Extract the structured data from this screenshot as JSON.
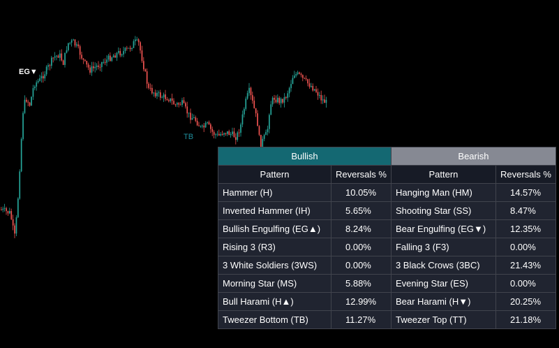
{
  "markers": {
    "engulfing": "EG▼",
    "tweezer_bottom": "TB"
  },
  "colors": {
    "up_candle": "#26a69a",
    "down_candle": "#ef5350",
    "bullish_header": "#146872",
    "bearish_header": "#868993",
    "table_bg": "#202430",
    "background": "#000000"
  },
  "table": {
    "bullish_title": "Bullish",
    "bearish_title": "Bearish",
    "col_pattern": "Pattern",
    "col_reversals": "Reversals %",
    "rows": [
      {
        "bull_name": "Hammer (H)",
        "bull_value": "10.05%",
        "bear_name": "Hanging Man (HM)",
        "bear_value": "14.57%"
      },
      {
        "bull_name": "Inverted Hammer (IH)",
        "bull_value": "5.65%",
        "bear_name": "Shooting Star (SS)",
        "bear_value": "8.47%"
      },
      {
        "bull_name": "Bullish Engulfing (EG▲)",
        "bull_value": "8.24%",
        "bear_name": "Bear Engulfing (EG▼)",
        "bear_value": "12.35%"
      },
      {
        "bull_name": "Rising 3 (R3)",
        "bull_value": "0.00%",
        "bear_name": "Falling 3 (F3)",
        "bear_value": "0.00%"
      },
      {
        "bull_name": "3 White Soldiers (3WS)",
        "bull_value": "0.00%",
        "bear_name": "3 Black Crows (3BC)",
        "bear_value": "21.43%"
      },
      {
        "bull_name": "Morning Star (MS)",
        "bull_value": "5.88%",
        "bear_name": "Evening Star (ES)",
        "bear_value": "0.00%"
      },
      {
        "bull_name": "Bull Harami (H▲)",
        "bull_value": "12.99%",
        "bear_name": "Bear Harami (H▼)",
        "bear_value": "20.25%"
      },
      {
        "bull_name": "Tweezer Bottom (TB)",
        "bull_value": "11.27%",
        "bear_name": "Tweezer Top (TT)",
        "bear_value": "21.18%"
      }
    ]
  }
}
